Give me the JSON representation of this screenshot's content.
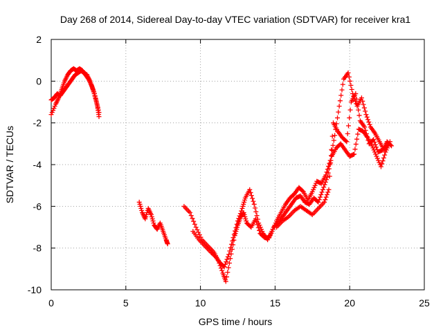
{
  "chart_data": {
    "type": "scatter",
    "title": "Day 268 of 2014, Sidereal Day-to-day VTEC variation (SDTVAR) for receiver kra1",
    "xlabel": "GPS time / hours",
    "ylabel": "SDTVAR / TECUs",
    "xlim": [
      0,
      25
    ],
    "ylim": [
      -10,
      2
    ],
    "xticks": [
      "0",
      "5",
      "10",
      "15",
      "20",
      "25"
    ],
    "yticks": [
      "-10",
      "-8",
      "-6",
      "-4",
      "-2",
      "0",
      "2"
    ],
    "grid": true,
    "legend": "none",
    "marker": "plus",
    "color": "#ff0000",
    "series": [
      {
        "x": [
          0.0,
          0.3,
          0.5,
          0.7,
          0.9,
          1.1,
          1.3,
          1.5,
          1.7,
          1.9,
          2.1,
          2.3,
          2.5,
          2.7,
          2.9,
          3.1,
          3.2
        ],
        "y": [
          -1.6,
          -1.1,
          -0.8,
          -0.4,
          0.0,
          0.3,
          0.5,
          0.6,
          0.5,
          0.6,
          0.5,
          0.3,
          0.1,
          -0.2,
          -0.6,
          -1.2,
          -1.7
        ]
      },
      {
        "x": [
          0.0,
          0.2,
          0.4,
          0.6,
          0.8,
          1.0,
          1.2,
          1.4,
          1.6,
          1.8,
          2.0,
          2.2,
          2.4,
          2.6,
          2.8,
          3.0,
          3.2
        ],
        "y": [
          -0.9,
          -0.8,
          -0.6,
          -0.7,
          -0.5,
          -0.3,
          -0.1,
          0.1,
          0.3,
          0.4,
          0.5,
          0.4,
          0.3,
          0.0,
          -0.4,
          -0.9,
          -1.5
        ]
      },
      {
        "x": [
          5.9,
          6.1,
          6.3,
          6.5,
          6.7,
          6.9,
          7.1,
          7.3,
          7.5,
          7.7,
          7.8
        ],
        "y": [
          -5.8,
          -6.3,
          -6.6,
          -6.1,
          -6.4,
          -6.9,
          -7.1,
          -6.8,
          -7.2,
          -7.6,
          -7.8
        ]
      },
      {
        "x": [
          8.9,
          9.3,
          9.7,
          10.1,
          10.5,
          10.9,
          11.2,
          11.5,
          11.7,
          12.0,
          12.3,
          12.5,
          12.7,
          12.9,
          13.1,
          13.4,
          13.7,
          14.0,
          14.3,
          14.6,
          14.9,
          15.2,
          15.5,
          15.8,
          16.1,
          16.4,
          16.7,
          17.0,
          17.3,
          17.6,
          17.9,
          18.2,
          18.5,
          18.8,
          19.1,
          19.4,
          19.7,
          20.0,
          20.3,
          20.6,
          20.9,
          21.2,
          21.5,
          21.8,
          22.1,
          22.4,
          22.7
        ],
        "y": [
          -6.0,
          -6.3,
          -7.0,
          -7.6,
          -7.9,
          -8.2,
          -8.6,
          -9.2,
          -9.6,
          -8.5,
          -7.4,
          -6.9,
          -6.5,
          -6.3,
          -6.8,
          -7.0,
          -6.6,
          -7.3,
          -7.5,
          -7.5,
          -7.0,
          -6.8,
          -6.5,
          -6.2,
          -5.9,
          -5.6,
          -5.5,
          -5.8,
          -5.9,
          -5.6,
          -5.8,
          -5.2,
          -4.6,
          -3.6,
          -3.2,
          -3.0,
          -3.3,
          -3.6,
          -3.5,
          -2.3,
          -2.4,
          -2.7,
          -3.1,
          -3.6,
          -4.1,
          -3.4,
          -2.9
        ]
      },
      {
        "x": [
          9.5,
          9.9,
          10.3,
          10.7,
          11.0,
          11.3,
          11.6,
          11.9,
          12.2,
          12.5,
          12.8,
          13.0,
          13.3,
          13.6,
          13.9,
          14.2,
          14.5,
          14.8,
          15.1,
          15.4,
          15.7,
          16.0,
          16.3,
          16.6,
          16.9,
          17.2,
          17.5,
          17.8,
          18.1,
          18.4,
          18.7,
          19.0,
          19.3,
          19.6,
          19.9,
          20.2,
          20.5,
          20.8,
          21.1,
          21.4,
          21.7,
          22.0,
          22.3,
          22.6
        ],
        "y": [
          -7.2,
          -7.6,
          -7.9,
          -8.2,
          -8.4,
          -8.7,
          -8.9,
          -8.3,
          -7.5,
          -6.7,
          -6.1,
          -5.6,
          -5.2,
          -5.9,
          -6.8,
          -7.3,
          -7.6,
          -7.2,
          -6.7,
          -6.3,
          -5.9,
          -5.6,
          -5.4,
          -5.1,
          -5.3,
          -5.7,
          -5.3,
          -4.8,
          -4.9,
          -4.5,
          -3.8,
          -2.6,
          -1.2,
          0.1,
          0.4,
          -0.6,
          -1.2,
          -0.8,
          -1.6,
          -2.2,
          -2.5,
          -2.9,
          -3.3,
          -3.0
        ]
      },
      {
        "x": [
          15.1,
          15.5,
          15.9,
          16.3,
          16.7,
          17.1,
          17.5,
          17.9,
          18.3,
          18.6,
          18.9,
          19.2,
          19.5,
          19.8,
          20.1,
          20.4,
          20.7,
          21.0,
          21.3,
          21.6,
          21.9,
          22.2,
          22.5,
          22.8
        ],
        "y": [
          -7.0,
          -6.7,
          -6.5,
          -6.2,
          -6.0,
          -6.2,
          -6.4,
          -6.1,
          -5.8,
          -5.2,
          -2.0,
          -2.4,
          -2.7,
          -2.9,
          -1.0,
          -0.6,
          -1.9,
          -2.2,
          -3.0,
          -2.8,
          -3.4,
          -3.3,
          -2.9,
          -3.1
        ]
      }
    ]
  }
}
